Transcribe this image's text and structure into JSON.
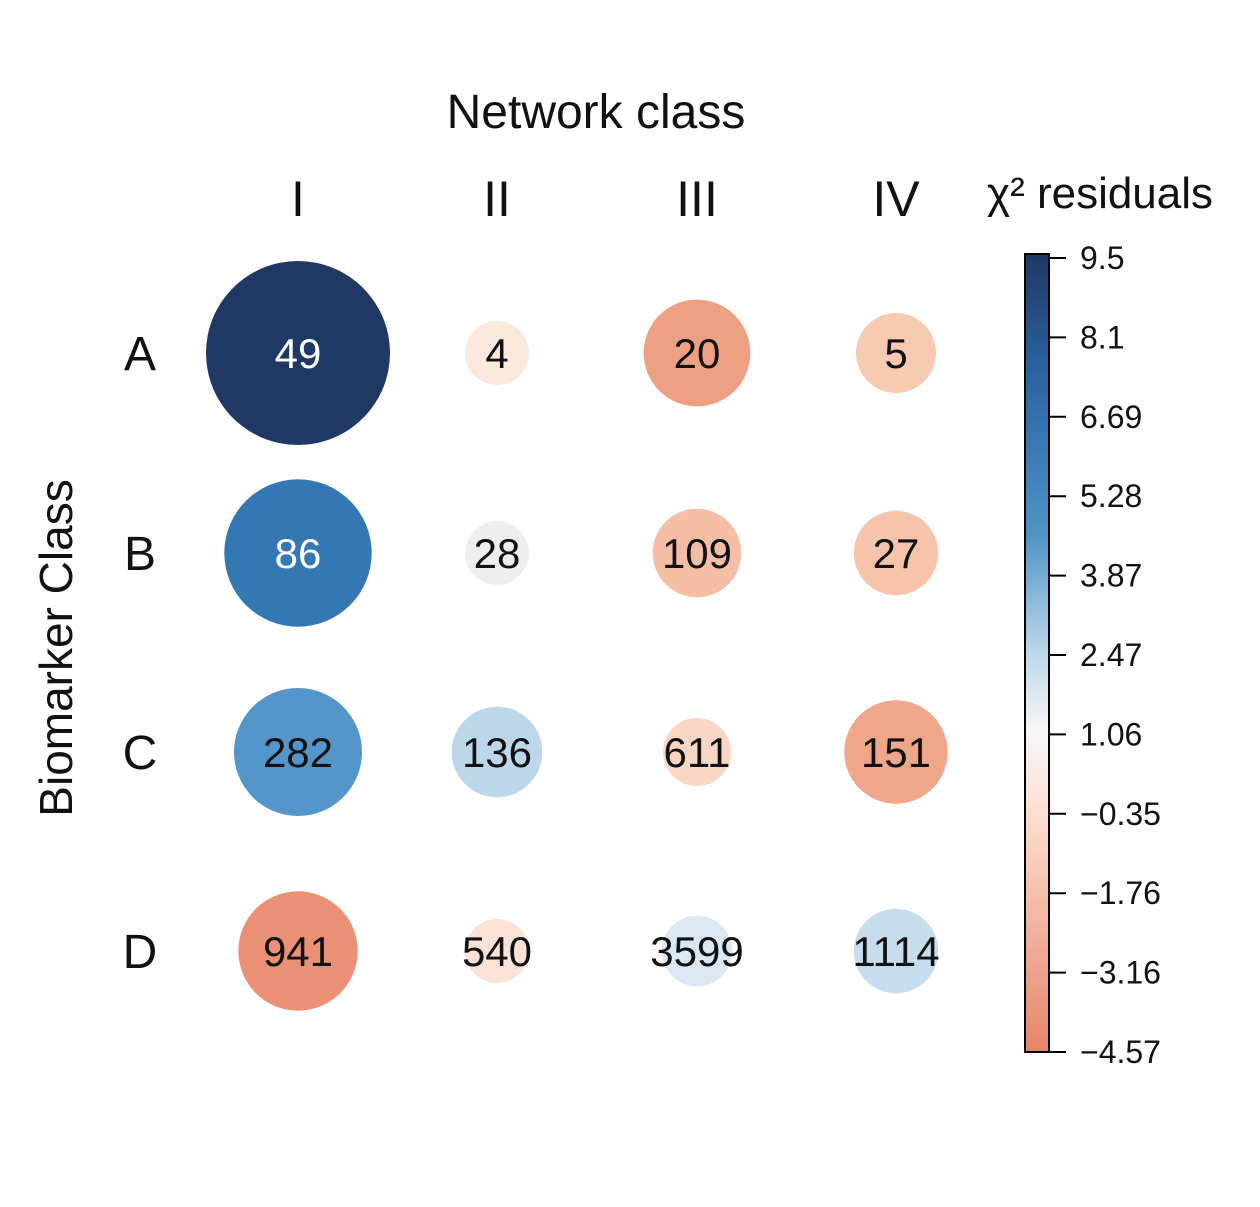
{
  "chart_data": {
    "type": "bubble-matrix",
    "title": "Network class",
    "xlabel": "Network class",
    "ylabel": "Biomarker Class",
    "columns": [
      "I",
      "II",
      "III",
      "IV"
    ],
    "rows": [
      "A",
      "B",
      "C",
      "D"
    ],
    "counts": [
      [
        49,
        4,
        20,
        5
      ],
      [
        86,
        28,
        109,
        27
      ],
      [
        282,
        136,
        611,
        151
      ],
      [
        941,
        540,
        3599,
        1114
      ]
    ],
    "residuals": [
      [
        9.5,
        -0.6,
        -3.2,
        -1.8
      ],
      [
        6.1,
        0.7,
        -2.2,
        -2.0
      ],
      [
        4.6,
        2.3,
        -1.3,
        -3.0
      ],
      [
        -4.0,
        -0.8,
        1.4,
        2.0
      ]
    ],
    "colorbar": {
      "title": "χ² residuals",
      "ticks": [
        "9.5",
        "8.1",
        "6.69",
        "5.28",
        "3.87",
        "2.47",
        "1.06",
        "−0.35",
        "−1.76",
        "−3.16",
        "−4.57"
      ],
      "range": [
        -4.57,
        9.5
      ],
      "colors": {
        "high": "#1f3864",
        "mid": "#f7f7f7",
        "low": "#e6846a"
      }
    }
  }
}
